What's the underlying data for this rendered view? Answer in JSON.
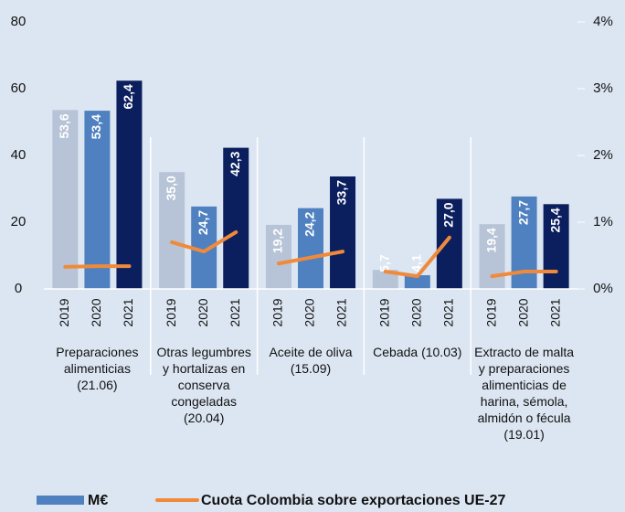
{
  "chart_data": {
    "type": "bar",
    "bar_series_name": "M€",
    "bar_legend_color": "#4f81c0",
    "bar_colors": [
      "#b7c3d6",
      "#4f81c0",
      "#0b1f5e"
    ],
    "line": {
      "name": "Cuota Colombia sobre exportaciones UE-27",
      "color": "#f08a3a",
      "axis": "y2"
    },
    "ylim": [
      0,
      80
    ],
    "yticks": [
      0,
      20,
      40,
      60,
      80
    ],
    "y2lim": [
      0,
      4
    ],
    "y2ticks": [
      {
        "value": 0,
        "label": "0%"
      },
      {
        "value": 1,
        "label": "1%"
      },
      {
        "value": 2,
        "label": "2%"
      },
      {
        "value": 3,
        "label": "3%"
      },
      {
        "value": 4,
        "label": "4%"
      }
    ],
    "groups": [
      {
        "label": "Preparaciones alimenticias (21.06)",
        "years": [
          "2019",
          "2020",
          "2021"
        ],
        "values": [
          53.6,
          53.4,
          62.4
        ],
        "value_labels": [
          "53,6",
          "53,4",
          "62,4"
        ],
        "share": [
          0.33,
          0.34,
          0.34
        ]
      },
      {
        "label": "Otras legumbres y hortalizas en conserva congeladas (20.04)",
        "years": [
          "2019",
          "2020",
          "2021"
        ],
        "values": [
          35.0,
          24.7,
          42.3
        ],
        "value_labels": [
          "35,0",
          "24,7",
          "42,3"
        ],
        "share": [
          0.7,
          0.56,
          0.85
        ]
      },
      {
        "label": "Aceite de oliva (15.09)",
        "years": [
          "2019",
          "2020",
          "2021"
        ],
        "values": [
          19.2,
          24.2,
          33.7
        ],
        "value_labels": [
          "19,2",
          "24,2",
          "33,7"
        ],
        "share": [
          0.38,
          0.47,
          0.56
        ]
      },
      {
        "label": "Cebada (10.03)",
        "years": [
          "2019",
          "2020",
          "2021"
        ],
        "values": [
          5.7,
          4.1,
          27.0
        ],
        "value_labels": [
          "5,7",
          "4,1",
          "27,0"
        ],
        "share": [
          0.26,
          0.19,
          0.77
        ]
      },
      {
        "label": "Extracto de malta y preparaciones alimenticias de harina, sémola, almidón o fécula (19.01)",
        "years": [
          "2019",
          "2020",
          "2021"
        ],
        "values": [
          19.4,
          27.7,
          25.4
        ],
        "value_labels": [
          "19,4",
          "27,7",
          "25,4"
        ],
        "share": [
          0.19,
          0.26,
          0.26
        ]
      }
    ]
  }
}
